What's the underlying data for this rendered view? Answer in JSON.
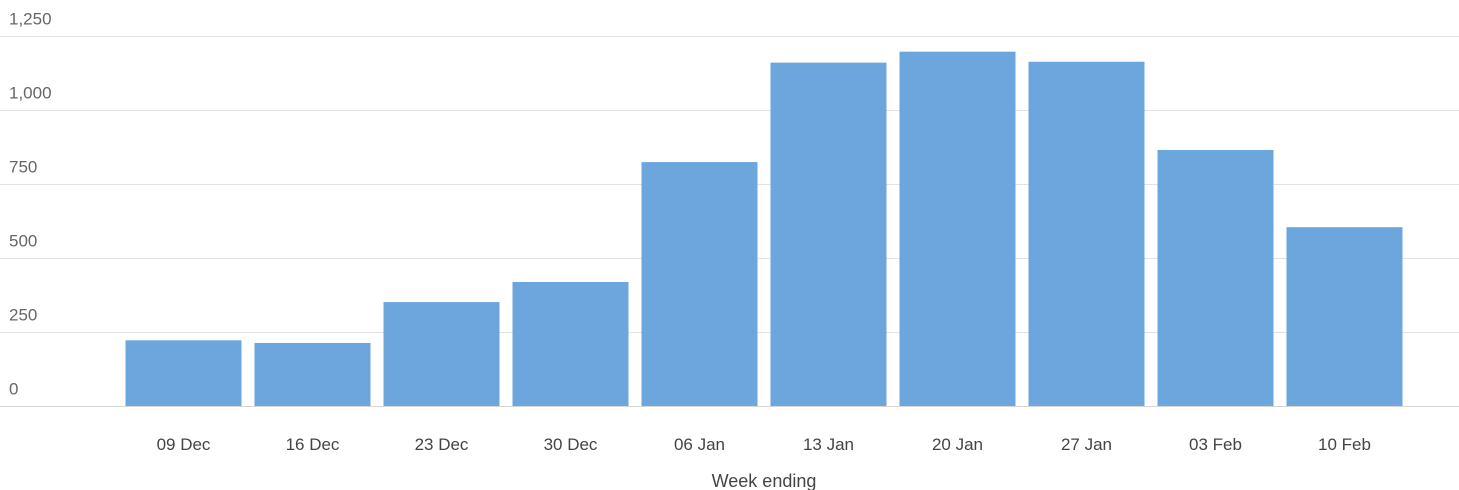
{
  "chart_data": {
    "type": "bar",
    "title": "",
    "xlabel": "Week ending",
    "ylabel": "",
    "categories": [
      "09 Dec",
      "16 Dec",
      "23 Dec",
      "30 Dec",
      "06 Jan",
      "13 Jan",
      "20 Jan",
      "27 Jan",
      "03 Feb",
      "10 Feb"
    ],
    "values": [
      222,
      213,
      351,
      419,
      824,
      1160,
      1197,
      1163,
      865,
      604
    ],
    "ylim": [
      0,
      1250
    ],
    "yticks": [
      0,
      250,
      500,
      750,
      1000,
      1250
    ],
    "ytick_labels": [
      "0",
      "250",
      "500",
      "750",
      "1,000",
      "1,250"
    ],
    "grid": true,
    "legend": "none",
    "colors": {
      "bar": "#6ca6dd",
      "grid": "#e3e3e3",
      "axis_text": "#666666"
    }
  }
}
